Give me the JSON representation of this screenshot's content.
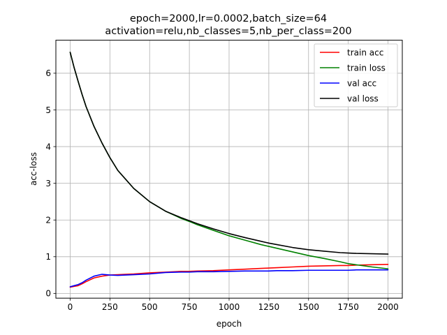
{
  "chart_data": {
    "type": "line",
    "title": "epoch=2000,lr=0.0002,batch_size=64",
    "subtitle": "activation=relu,nb_classes=5,nb_per_class=200",
    "xlabel": "epoch",
    "ylabel": "acc-loss",
    "xlim": [
      -90,
      2090
    ],
    "ylim": [
      -0.13,
      6.9
    ],
    "xticks": [
      0,
      250,
      500,
      750,
      1000,
      1250,
      1500,
      1750,
      2000
    ],
    "yticks": [
      0,
      1,
      2,
      3,
      4,
      5,
      6
    ],
    "grid": true,
    "legend_position": "top-right",
    "x": [
      0,
      25,
      50,
      75,
      100,
      150,
      200,
      250,
      300,
      400,
      500,
      600,
      700,
      750,
      800,
      900,
      1000,
      1100,
      1200,
      1250,
      1300,
      1400,
      1500,
      1600,
      1700,
      1750,
      1800,
      1900,
      2000
    ],
    "series": [
      {
        "name": "train acc",
        "color": "#ff0000",
        "values": [
          0.17,
          0.19,
          0.21,
          0.26,
          0.32,
          0.42,
          0.47,
          0.5,
          0.51,
          0.53,
          0.56,
          0.58,
          0.6,
          0.6,
          0.61,
          0.62,
          0.64,
          0.66,
          0.68,
          0.69,
          0.7,
          0.72,
          0.74,
          0.75,
          0.76,
          0.76,
          0.77,
          0.78,
          0.79
        ]
      },
      {
        "name": "train loss",
        "color": "#008000",
        "values": [
          6.57,
          6.15,
          5.78,
          5.42,
          5.09,
          4.55,
          4.1,
          3.7,
          3.35,
          2.86,
          2.5,
          2.24,
          2.04,
          1.96,
          1.87,
          1.72,
          1.57,
          1.45,
          1.33,
          1.28,
          1.23,
          1.13,
          1.03,
          0.95,
          0.86,
          0.81,
          0.78,
          0.72,
          0.67
        ]
      },
      {
        "name": "val acc",
        "color": "#0000ff",
        "values": [
          0.18,
          0.21,
          0.24,
          0.29,
          0.36,
          0.47,
          0.52,
          0.5,
          0.49,
          0.51,
          0.53,
          0.57,
          0.58,
          0.58,
          0.59,
          0.59,
          0.6,
          0.61,
          0.61,
          0.61,
          0.62,
          0.62,
          0.63,
          0.63,
          0.63,
          0.63,
          0.64,
          0.64,
          0.64
        ]
      },
      {
        "name": "val loss",
        "color": "#000000",
        "values": [
          6.57,
          6.15,
          5.78,
          5.42,
          5.09,
          4.55,
          4.1,
          3.7,
          3.35,
          2.86,
          2.5,
          2.24,
          2.06,
          1.98,
          1.9,
          1.76,
          1.63,
          1.52,
          1.42,
          1.37,
          1.33,
          1.25,
          1.19,
          1.15,
          1.11,
          1.1,
          1.09,
          1.08,
          1.07
        ]
      }
    ]
  }
}
